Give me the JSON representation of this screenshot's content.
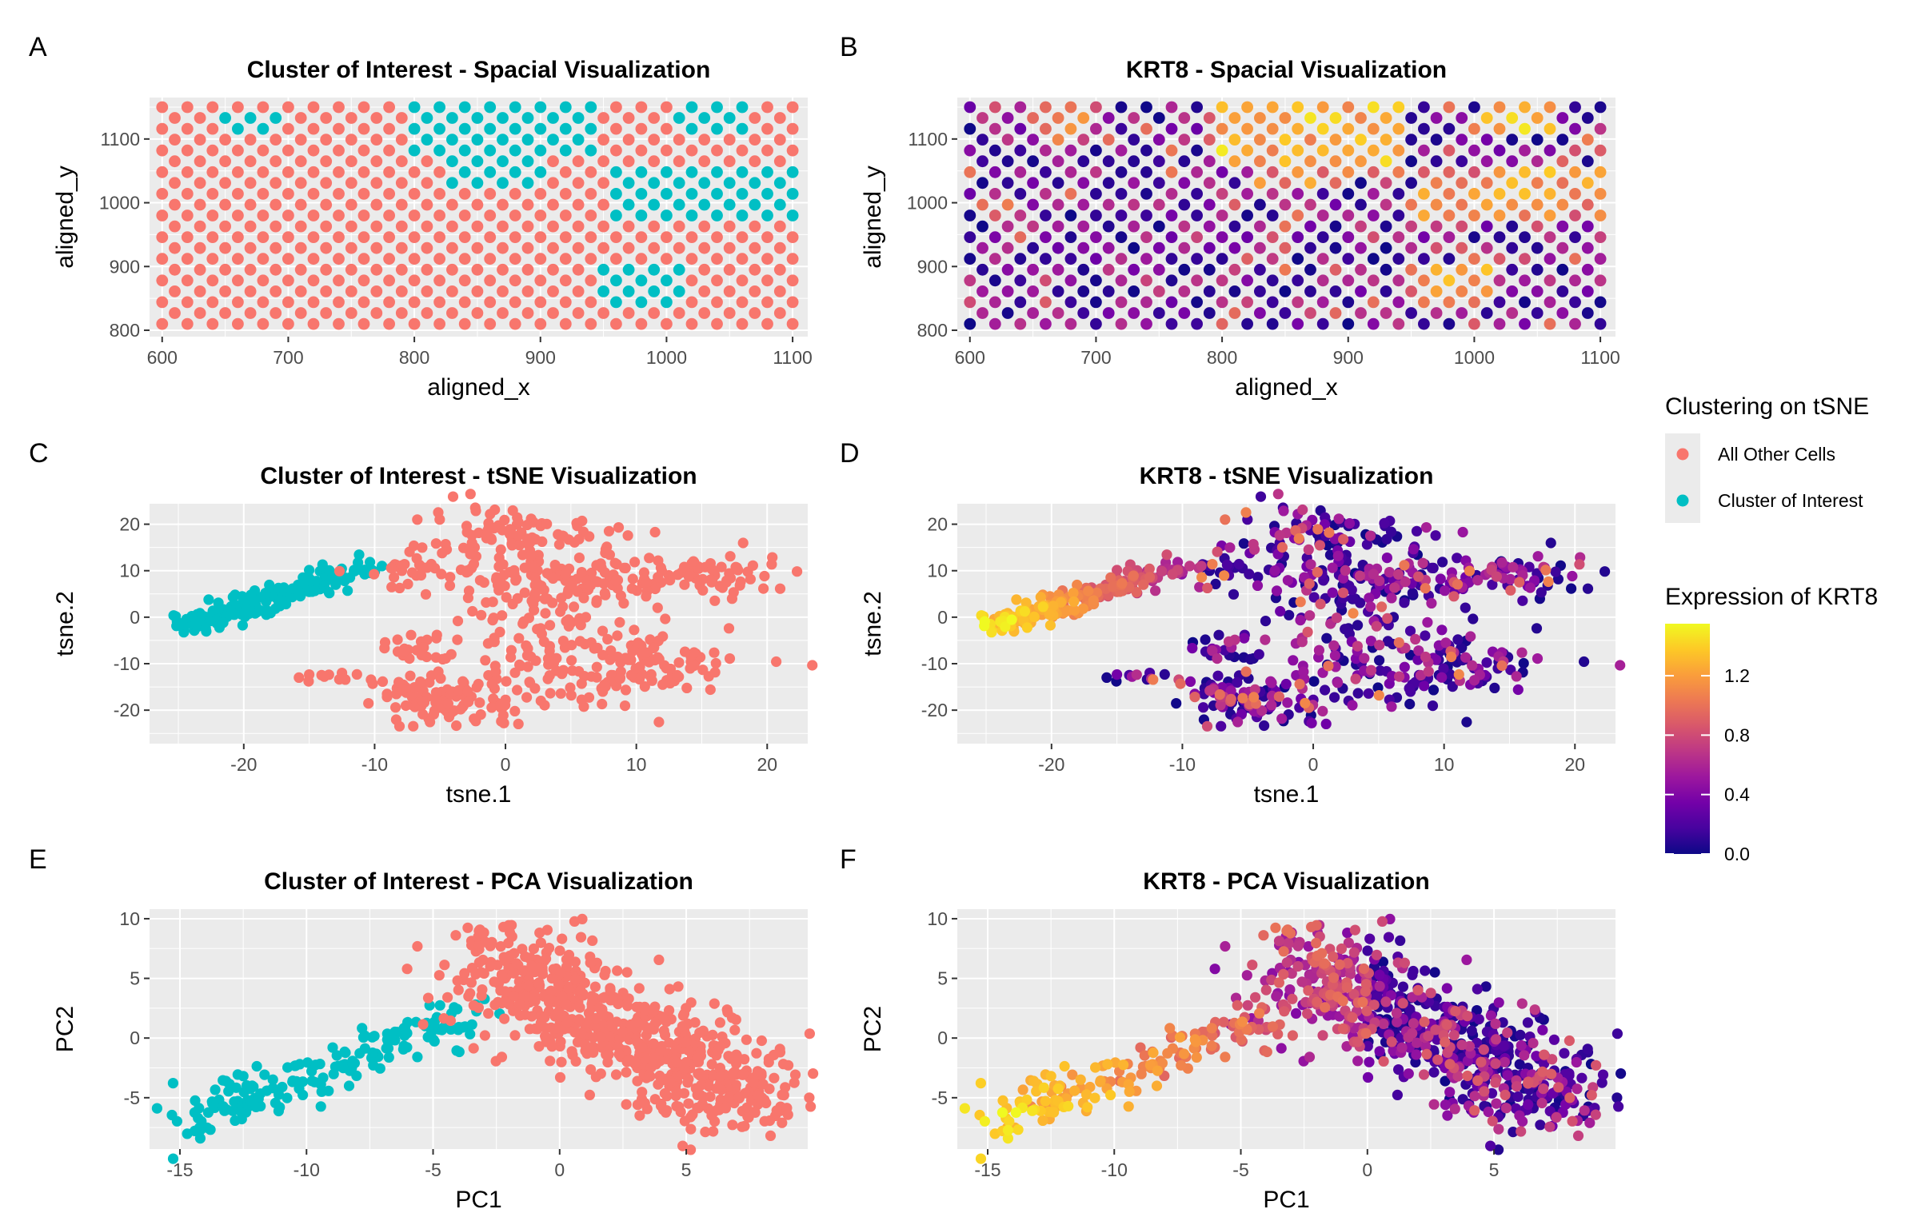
{
  "palette": {
    "panel_bg": "#ebebeb",
    "grid_major": "#ffffff",
    "cluster_other": "#f8766d",
    "cluster_interest": "#00bfc4",
    "plasma": [
      "#0d0887",
      "#47039f",
      "#7301a8",
      "#9c179e",
      "#bd3786",
      "#d8576b",
      "#ed7953",
      "#fa9e3b",
      "#fdc926",
      "#f0f921"
    ]
  },
  "legends": {
    "cluster": {
      "title": "Clustering on tSNE",
      "items": [
        "All Other Cells",
        "Cluster of Interest"
      ]
    },
    "expression": {
      "title": "Expression of KRT8",
      "ticks": [
        "0.0",
        "0.4",
        "0.8",
        "1.2"
      ],
      "max": 1.55
    }
  },
  "chart_data": [
    {
      "tag": "A",
      "type": "scatter",
      "color_mode": "cluster",
      "layout": "spatial",
      "title": "Cluster of Interest - Spacial Visualization",
      "xlabel": "aligned_x",
      "ylabel": "aligned_y",
      "xlim": [
        590,
        1112
      ],
      "ylim": [
        790,
        1165
      ],
      "xticks": [
        600,
        700,
        800,
        900,
        1000,
        1100
      ],
      "yticks": [
        800,
        900,
        1000,
        1100
      ],
      "grid": true,
      "points_note": "hexagonal grid of spots spanning x 600-1100, y 810-1150; interest regions listed",
      "interest_regions": [
        {
          "x": [
            650,
            690
          ],
          "y": [
            1110,
            1135
          ]
        },
        {
          "x": [
            795,
            940
          ],
          "y": [
            1070,
            1150
          ]
        },
        {
          "x": [
            830,
            900
          ],
          "y": [
            1020,
            1070
          ]
        },
        {
          "x": [
            1010,
            1060
          ],
          "y": [
            1110,
            1150
          ]
        },
        {
          "x": [
            960,
            1100
          ],
          "y": [
            975,
            1060
          ]
        },
        {
          "x": [
            945,
            1010
          ],
          "y": [
            840,
            895
          ]
        }
      ]
    },
    {
      "tag": "B",
      "type": "scatter",
      "color_mode": "expression",
      "layout": "spatial",
      "title": "KRT8 - Spacial Visualization",
      "xlabel": "aligned_x",
      "ylabel": "aligned_y",
      "xlim": [
        590,
        1112
      ],
      "ylim": [
        790,
        1165
      ],
      "xticks": [
        600,
        700,
        800,
        900,
        1000,
        1100
      ],
      "yticks": [
        800,
        900,
        1000,
        1100
      ],
      "grid": true,
      "high_regions": [
        {
          "x": [
            800,
            940
          ],
          "y": [
            1060,
            1150
          ]
        },
        {
          "x": [
            1010,
            1060
          ],
          "y": [
            1100,
            1150
          ]
        },
        {
          "x": [
            1020,
            1060
          ],
          "y": [
            990,
            1050
          ]
        },
        {
          "x": [
            960,
            1010
          ],
          "y": [
            850,
            900
          ]
        }
      ]
    },
    {
      "tag": "C",
      "type": "scatter",
      "color_mode": "cluster",
      "layout": "tsne",
      "title": "Cluster of Interest - tSNE Visualization",
      "xlabel": "tsne.1",
      "ylabel": "tsne.2",
      "xlim": [
        -27.2,
        23.1
      ],
      "ylim": [
        -27.2,
        24.4
      ],
      "xticks": [
        -20,
        -10,
        0,
        10,
        20
      ],
      "yticks": [
        -20,
        -10,
        0,
        10,
        20
      ],
      "tick_labels_x": [
        "-20",
        "-10",
        "0",
        "10",
        "20"
      ],
      "tick_labels_y": [
        "-20",
        "-10",
        "0",
        "10",
        "20"
      ],
      "grid": true,
      "series": [
        {
          "name": "Cluster of Interest",
          "band": {
            "from": [
              -25,
              -2
            ],
            "to": [
              -10,
              11
            ]
          }
        },
        {
          "name": "All Other Cells"
        }
      ]
    },
    {
      "tag": "D",
      "type": "scatter",
      "color_mode": "expression",
      "layout": "tsne",
      "title": "KRT8 - tSNE Visualization",
      "xlabel": "tsne.1",
      "ylabel": "tsne.2",
      "xlim": [
        -27.2,
        23.1
      ],
      "ylim": [
        -27.2,
        24.4
      ],
      "xticks": [
        -20,
        -10,
        0,
        10,
        20
      ],
      "yticks": [
        -20,
        -10,
        0,
        10,
        20
      ],
      "tick_labels_x": [
        "-20",
        "-10",
        "0",
        "10",
        "20"
      ],
      "tick_labels_y": [
        "-20",
        "-10",
        "0",
        "10",
        "20"
      ],
      "grid": true
    },
    {
      "tag": "E",
      "type": "scatter",
      "color_mode": "cluster",
      "layout": "pca",
      "title": "Cluster of Interest - PCA Visualization",
      "xlabel": "PC1",
      "ylabel": "PC2",
      "xlim": [
        -16.2,
        9.8
      ],
      "ylim": [
        -9.3,
        10.8
      ],
      "xticks": [
        -15,
        -10,
        -5,
        0,
        5
      ],
      "yticks": [
        -5,
        0,
        5,
        10
      ],
      "tick_labels_x": [
        "-15",
        "-10",
        "-5",
        "0",
        "5"
      ],
      "tick_labels_y": [
        "-5",
        "0",
        "5",
        "10"
      ],
      "grid": true,
      "series": [
        {
          "name": "Cluster of Interest",
          "band": {
            "from": [
              -15,
              -7
            ],
            "to": [
              -3,
              2
            ]
          }
        },
        {
          "name": "All Other Cells"
        }
      ]
    },
    {
      "tag": "F",
      "type": "scatter",
      "color_mode": "expression",
      "layout": "pca",
      "title": "KRT8 - PCA Visualization",
      "xlabel": "PC1",
      "ylabel": "PC2",
      "xlim": [
        -16.2,
        9.8
      ],
      "ylim": [
        -9.3,
        10.8
      ],
      "xticks": [
        -15,
        -10,
        -5,
        0,
        5
      ],
      "yticks": [
        -5,
        0,
        5,
        10
      ],
      "tick_labels_x": [
        "-15",
        "-10",
        "-5",
        "0",
        "5"
      ],
      "tick_labels_y": [
        "-5",
        "0",
        "5",
        "10"
      ],
      "grid": true
    }
  ]
}
